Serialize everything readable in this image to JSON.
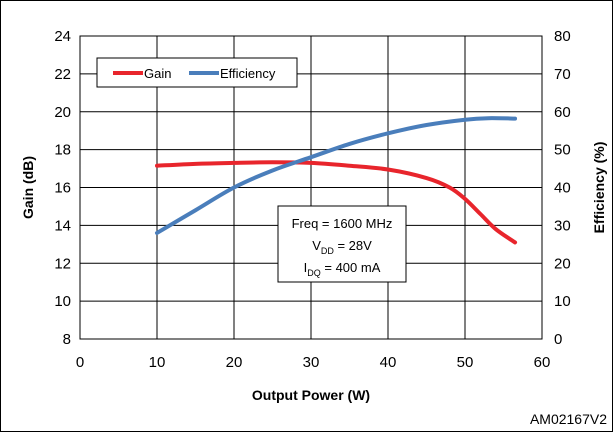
{
  "chart_data": {
    "type": "line",
    "xlabel": "Output Power (W)",
    "ylabel": "Gain (dB)",
    "y2label": "Efficiency (%)",
    "xlim": [
      0,
      60
    ],
    "ylim": [
      8,
      24
    ],
    "y2lim": [
      0,
      80
    ],
    "xticks": [
      "0",
      "10",
      "20",
      "30",
      "40",
      "50",
      "60"
    ],
    "yticks": [
      "8",
      "10",
      "12",
      "14",
      "16",
      "18",
      "20",
      "22",
      "24"
    ],
    "y2ticks": [
      "0",
      "10",
      "20",
      "30",
      "40",
      "50",
      "60",
      "70",
      "80"
    ],
    "grid": true,
    "legend_position": "top-left",
    "series": [
      {
        "name": "Gain",
        "axis": "left",
        "color": "#e8252c",
        "x": [
          10,
          15,
          20,
          25,
          30,
          35,
          40,
          45,
          48,
          50,
          52,
          54,
          56.5
        ],
        "values": [
          17.15,
          17.25,
          17.3,
          17.33,
          17.3,
          17.15,
          16.95,
          16.5,
          16.0,
          15.4,
          14.6,
          13.8,
          13.1
        ]
      },
      {
        "name": "Efficiency",
        "axis": "right",
        "color": "#4a7ebb",
        "x": [
          10,
          15,
          20,
          25,
          30,
          35,
          40,
          45,
          50,
          53,
          56.5
        ],
        "values": [
          28,
          34,
          40,
          44.5,
          48,
          51.5,
          54.3,
          56.5,
          57.9,
          58.3,
          58.2
        ]
      }
    ],
    "annotation": {
      "line1": "Freq = 1600 MHz",
      "line2_main": "V",
      "line2_sub": "DD",
      "line2_rest": " = 28V",
      "line3_main": "I",
      "line3_sub": "DQ",
      "line3_rest": " = 400 mA"
    },
    "figure_code": "AM02167V2"
  }
}
